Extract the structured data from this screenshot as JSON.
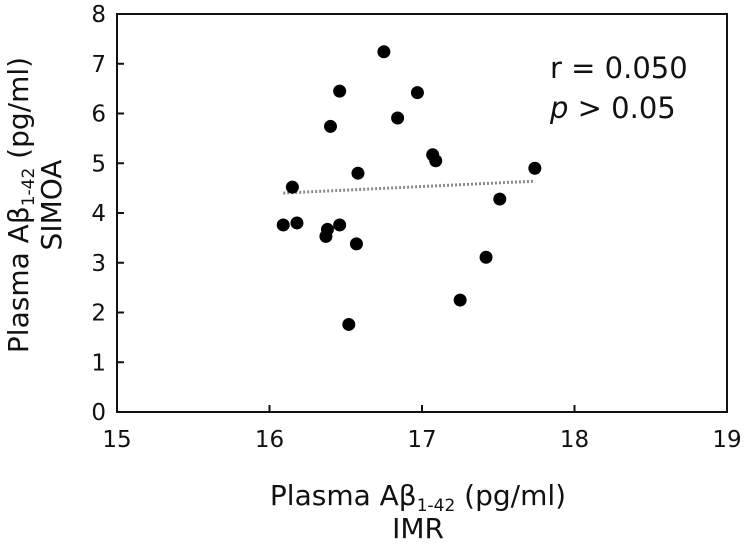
{
  "chart_data": {
    "type": "scatter",
    "xlabel_parts": {
      "main": "Plasma Aβ",
      "sub": "1-42",
      "unit": " (pg/ml)"
    },
    "xlabel_line2": "IMR",
    "ylabel_parts": {
      "main": "Plasma Aβ",
      "sub": "1-42",
      "unit": " (pg/ml)"
    },
    "ylabel_line2": "SIMOA",
    "xlim": [
      15,
      19
    ],
    "ylim": [
      0,
      8
    ],
    "x_ticks": [
      15,
      16,
      17,
      18,
      19
    ],
    "y_ticks": [
      0,
      1,
      2,
      3,
      4,
      5,
      6,
      7,
      8
    ],
    "grid": false,
    "legend": "none",
    "annotations": {
      "r_text": "r = 0.050",
      "p_italic": "p",
      "p_rest": " > 0.05"
    },
    "points": [
      {
        "x": 16.09,
        "y": 3.76
      },
      {
        "x": 16.15,
        "y": 4.52
      },
      {
        "x": 16.18,
        "y": 3.8
      },
      {
        "x": 16.37,
        "y": 3.53
      },
      {
        "x": 16.38,
        "y": 3.67
      },
      {
        "x": 16.4,
        "y": 5.74
      },
      {
        "x": 16.46,
        "y": 6.45
      },
      {
        "x": 16.46,
        "y": 3.76
      },
      {
        "x": 16.52,
        "y": 1.76
      },
      {
        "x": 16.57,
        "y": 3.38
      },
      {
        "x": 16.58,
        "y": 4.8
      },
      {
        "x": 16.75,
        "y": 7.24
      },
      {
        "x": 16.84,
        "y": 5.91
      },
      {
        "x": 16.97,
        "y": 6.42
      },
      {
        "x": 17.07,
        "y": 5.17
      },
      {
        "x": 17.09,
        "y": 5.05
      },
      {
        "x": 17.25,
        "y": 2.25
      },
      {
        "x": 17.42,
        "y": 3.11
      },
      {
        "x": 17.51,
        "y": 4.28
      },
      {
        "x": 17.74,
        "y": 4.9
      }
    ],
    "trendline": {
      "x": [
        16.09,
        17.74
      ],
      "y": [
        4.4,
        4.64
      ],
      "style": "dotted"
    },
    "colors": {
      "points": "#000000",
      "axis": "#111111",
      "trend": "#8a8a8a"
    }
  }
}
